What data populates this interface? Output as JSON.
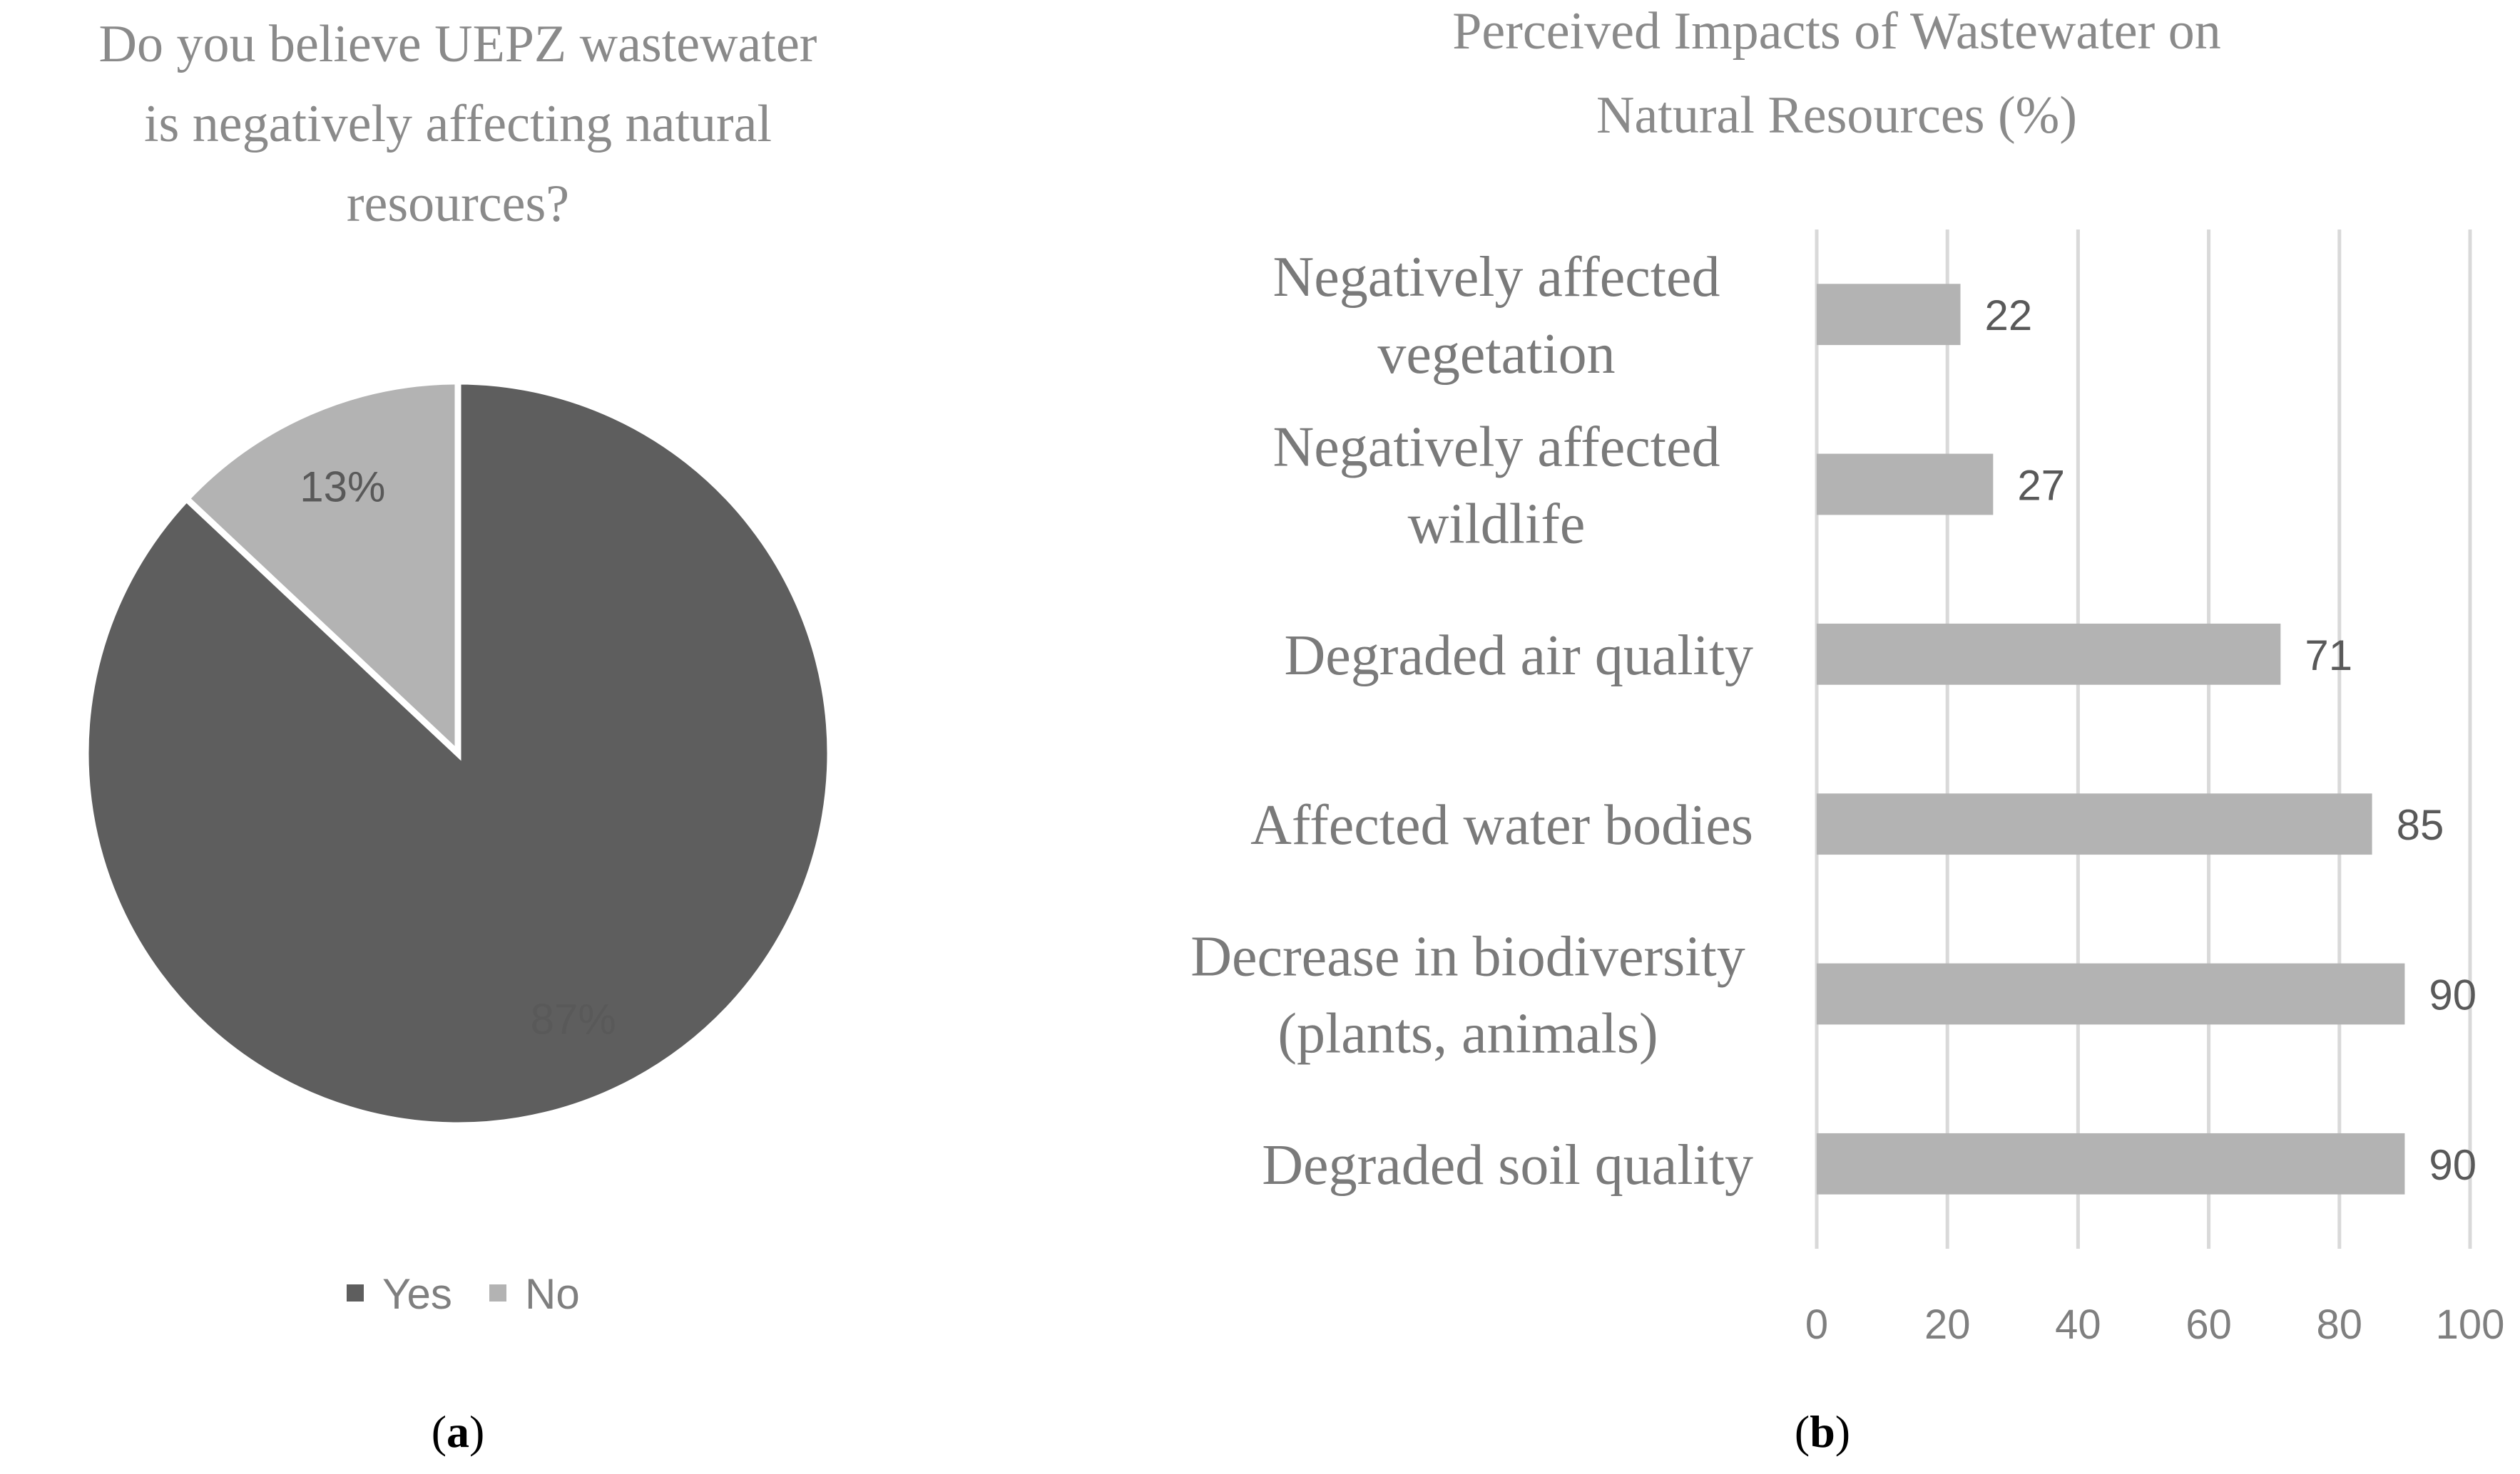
{
  "panels": {
    "a": "a",
    "b": "b"
  },
  "chart_data": [
    {
      "id": "a",
      "type": "pie",
      "title": [
        "Do you believe UEPZ wastewater",
        "is negatively affecting natural",
        "resources?"
      ],
      "slices": [
        {
          "name": "Yes",
          "value": 87,
          "label": "87%",
          "color": "#5e5e5e"
        },
        {
          "name": "No",
          "value": 13,
          "label": "13%",
          "color": "#b3b3b3"
        }
      ],
      "legend": {
        "position": "bottom",
        "items": [
          "Yes",
          "No"
        ]
      }
    },
    {
      "id": "b",
      "type": "bar",
      "orientation": "horizontal",
      "title": [
        "Perceived Impacts of Wastewater on",
        "Natural Resources (%)"
      ],
      "categories": [
        [
          "Negatively affected",
          "vegetation"
        ],
        [
          "Negatively affected",
          "wildlife"
        ],
        [
          "Degraded air quality"
        ],
        [
          "Affected water bodies"
        ],
        [
          "Decrease in biodiversity",
          "(plants, animals)"
        ],
        [
          "Degraded soil quality"
        ]
      ],
      "values": [
        22,
        27,
        71,
        85,
        90,
        90
      ],
      "xlim": [
        0,
        100
      ],
      "ticks": [
        0,
        20,
        40,
        60,
        80,
        100
      ],
      "grid": true,
      "bar_color": "#b3b3b3",
      "xlabel": "",
      "ylabel": ""
    }
  ]
}
